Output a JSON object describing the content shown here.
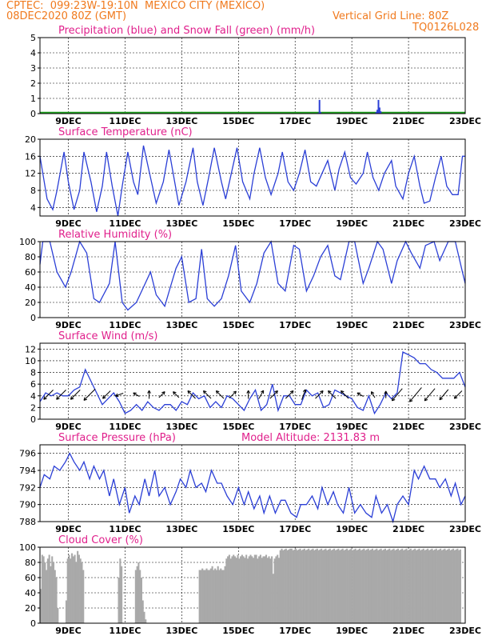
{
  "header": {
    "line1_left": "CPTEC:  099:23W-19:10N  MEXICO CITY (MEXICO)",
    "line2_left": "08DEC2020 80Z (GMT)",
    "line2_right": "Vertical Grid Line: 80Z",
    "line3_right": "TQ0126L028"
  },
  "colors": {
    "header": "#f07a1e",
    "title": "#e0208c",
    "line": "#2b3fd6",
    "snow": "#1fa01f",
    "cloud": "#a9a9a9",
    "wind_arrow": "#000000"
  },
  "date_ticks": [
    "9DEC",
    "11DEC",
    "13DEC",
    "15DEC",
    "17DEC",
    "19DEC",
    "21DEC",
    "23DEC"
  ],
  "chart_data": [
    {
      "id": "precip",
      "type": "bar",
      "title": "Precipitation (blue) and Snow Fall (green) (mm/h)",
      "ylim": [
        0,
        5
      ],
      "yticks": [
        0,
        1,
        2,
        3,
        4,
        5
      ],
      "grid": true,
      "x_range_days": [
        8.0,
        23.0
      ],
      "series": [
        {
          "name": "Precipitation",
          "x": [
            17.82,
            17.86,
            17.9,
            19.86,
            19.9,
            19.94,
            19.98,
            20.02
          ],
          "values": [
            0.05,
            0.9,
            0.1,
            0.1,
            0.25,
            0.9,
            0.4,
            0.15
          ]
        },
        {
          "name": "Snow Fall",
          "values": [
            0
          ]
        }
      ]
    },
    {
      "id": "temp",
      "type": "line",
      "title": "Surface Temperature (nC)",
      "ylim": [
        2,
        20
      ],
      "yticks": [
        4,
        8,
        12,
        16,
        20
      ],
      "grid": true,
      "x_range_days": [
        8.0,
        23.0
      ],
      "x": [
        8.0,
        8.25,
        8.45,
        8.6,
        8.85,
        9.0,
        9.2,
        9.4,
        9.55,
        9.8,
        10.0,
        10.2,
        10.35,
        10.55,
        10.75,
        10.9,
        11.1,
        11.3,
        11.45,
        11.65,
        11.9,
        12.1,
        12.35,
        12.55,
        12.75,
        12.9,
        13.15,
        13.4,
        13.55,
        13.75,
        13.95,
        14.15,
        14.4,
        14.55,
        14.75,
        14.95,
        15.15,
        15.4,
        15.55,
        15.75,
        15.95,
        16.15,
        16.4,
        16.55,
        16.75,
        16.95,
        17.15,
        17.35,
        17.55,
        17.75,
        17.95,
        18.15,
        18.4,
        18.55,
        18.75,
        18.95,
        19.15,
        19.4,
        19.55,
        19.75,
        19.95,
        20.15,
        20.4,
        20.55,
        20.8,
        21.0,
        21.2,
        21.4,
        21.55,
        21.75,
        21.95,
        22.15,
        22.35,
        22.55,
        22.75,
        22.9,
        23.0
      ],
      "values": [
        16,
        6,
        3.5,
        8,
        17,
        10,
        3.5,
        8,
        17,
        10,
        3,
        9,
        17,
        9,
        2,
        9,
        17,
        10,
        7,
        18.5,
        11,
        5,
        10,
        17.5,
        10,
        4.5,
        10,
        18,
        10,
        4.5,
        11,
        18,
        10,
        6,
        12,
        18,
        10,
        6,
        12,
        18,
        11,
        7,
        12,
        17,
        10,
        8,
        12,
        17.5,
        10,
        9,
        12,
        15,
        8,
        13,
        17,
        11,
        9.5,
        12,
        17,
        11,
        8,
        12,
        15,
        9,
        6,
        12,
        16,
        9,
        5,
        5.5,
        11,
        16,
        9,
        7,
        7,
        16,
        16
      ]
    },
    {
      "id": "rh",
      "type": "line",
      "title": "Relative Humidity (%)",
      "ylim": [
        0,
        100
      ],
      "yticks": [
        0,
        20,
        40,
        60,
        80,
        100
      ],
      "grid": true,
      "x_range_days": [
        8.0,
        23.0
      ],
      "x": [
        8.0,
        8.1,
        8.35,
        8.6,
        8.9,
        9.1,
        9.4,
        9.65,
        9.9,
        10.1,
        10.45,
        10.65,
        10.9,
        11.1,
        11.4,
        11.65,
        11.9,
        12.1,
        12.4,
        12.6,
        12.8,
        13.0,
        13.25,
        13.5,
        13.7,
        13.9,
        14.15,
        14.4,
        14.65,
        14.9,
        15.1,
        15.4,
        15.65,
        15.9,
        16.15,
        16.4,
        16.65,
        16.95,
        17.15,
        17.4,
        17.65,
        17.9,
        18.15,
        18.4,
        18.6,
        18.9,
        19.1,
        19.4,
        19.6,
        19.9,
        20.1,
        20.4,
        20.6,
        20.9,
        21.1,
        21.4,
        21.6,
        21.9,
        22.1,
        22.4,
        22.65,
        22.9,
        23.0
      ],
      "values": [
        70,
        100,
        100,
        60,
        40,
        60,
        100,
        85,
        25,
        20,
        45,
        100,
        20,
        10,
        20,
        40,
        60,
        30,
        15,
        40,
        65,
        80,
        20,
        25,
        90,
        25,
        15,
        25,
        55,
        95,
        35,
        20,
        45,
        85,
        100,
        45,
        35,
        95,
        90,
        35,
        55,
        80,
        95,
        55,
        50,
        100,
        100,
        45,
        65,
        100,
        90,
        45,
        75,
        100,
        85,
        65,
        95,
        100,
        75,
        100,
        100,
        60,
        45
      ]
    },
    {
      "id": "wind",
      "type": "line",
      "title": "Surface Wind (m/s)",
      "ylim": [
        0,
        13
      ],
      "yticks": [
        0,
        2,
        4,
        6,
        8,
        10,
        12
      ],
      "grid": true,
      "x_range_days": [
        8.0,
        23.0
      ],
      "x": [
        8.0,
        8.2,
        8.4,
        8.6,
        8.8,
        9.0,
        9.2,
        9.4,
        9.6,
        9.8,
        10.0,
        10.2,
        10.4,
        10.6,
        10.8,
        11.0,
        11.2,
        11.4,
        11.6,
        11.8,
        12.0,
        12.2,
        12.4,
        12.6,
        12.8,
        13.0,
        13.2,
        13.4,
        13.6,
        13.8,
        14.0,
        14.2,
        14.4,
        14.6,
        14.8,
        15.0,
        15.2,
        15.4,
        15.6,
        15.8,
        16.0,
        16.2,
        16.4,
        16.6,
        16.8,
        17.0,
        17.2,
        17.4,
        17.6,
        17.8,
        18.0,
        18.2,
        18.4,
        18.6,
        18.8,
        19.0,
        19.2,
        19.4,
        19.6,
        19.8,
        20.0,
        20.2,
        20.4,
        20.6,
        20.8,
        21.0,
        21.2,
        21.4,
        21.6,
        21.8,
        22.0,
        22.2,
        22.4,
        22.6,
        22.8,
        23.0
      ],
      "values": [
        3,
        4.5,
        4,
        4.5,
        4,
        4,
        5,
        5.5,
        8.5,
        6.5,
        4.5,
        2.5,
        3.5,
        4.5,
        3,
        1,
        1.5,
        2.5,
        1.5,
        3,
        2,
        1.5,
        2.5,
        2.5,
        1.5,
        3,
        2.5,
        4.5,
        3.5,
        4,
        2,
        3,
        2,
        4,
        3.5,
        2.5,
        1.5,
        3.5,
        5,
        1.5,
        2.5,
        6,
        1.5,
        4,
        4,
        2.5,
        2.5,
        5,
        4,
        4.5,
        2,
        2.5,
        5,
        4.5,
        4,
        3.5,
        2,
        1.5,
        4,
        1,
        2.5,
        4.5,
        3.5,
        4.5,
        11.5,
        11,
        10.5,
        9.5,
        9.5,
        8.5,
        8,
        7,
        7,
        7,
        8,
        5.5
      ],
      "arrows": [
        {
          "day": 8.3,
          "speed": 4,
          "dir_deg": 225
        },
        {
          "day": 8.75,
          "speed": 4,
          "dir_deg": 225
        },
        {
          "day": 9.25,
          "speed": 4,
          "dir_deg": 225
        },
        {
          "day": 9.75,
          "speed": 5,
          "dir_deg": 225
        },
        {
          "day": 10.35,
          "speed": 3,
          "dir_deg": 225
        },
        {
          "day": 10.8,
          "speed": 2,
          "dir_deg": 200
        },
        {
          "day": 11.4,
          "speed": 1.5,
          "dir_deg": 150
        },
        {
          "day": 11.85,
          "speed": 2,
          "dir_deg": 90
        },
        {
          "day": 12.3,
          "speed": 2,
          "dir_deg": 45
        },
        {
          "day": 12.8,
          "speed": 2,
          "dir_deg": 135
        },
        {
          "day": 13.35,
          "speed": 3,
          "dir_deg": 135
        },
        {
          "day": 13.9,
          "speed": 3,
          "dir_deg": 135
        },
        {
          "day": 14.35,
          "speed": 3,
          "dir_deg": 135
        },
        {
          "day": 14.8,
          "speed": 2.5,
          "dir_deg": 45
        },
        {
          "day": 15.35,
          "speed": 2,
          "dir_deg": 90
        },
        {
          "day": 15.8,
          "speed": 2.5,
          "dir_deg": 60
        },
        {
          "day": 16.25,
          "speed": 3,
          "dir_deg": 45
        },
        {
          "day": 16.8,
          "speed": 3,
          "dir_deg": 45
        },
        {
          "day": 17.3,
          "speed": 3,
          "dir_deg": 70
        },
        {
          "day": 17.85,
          "speed": 3,
          "dir_deg": 45
        },
        {
          "day": 18.3,
          "speed": 3,
          "dir_deg": 135
        },
        {
          "day": 18.75,
          "speed": 3,
          "dir_deg": 135
        },
        {
          "day": 19.3,
          "speed": 1.5,
          "dir_deg": 150
        },
        {
          "day": 19.75,
          "speed": 1.5,
          "dir_deg": 120
        },
        {
          "day": 20.2,
          "speed": 1.5,
          "dir_deg": 90
        },
        {
          "day": 20.6,
          "speed": 5,
          "dir_deg": 230
        },
        {
          "day": 21.25,
          "speed": 6,
          "dir_deg": 230
        },
        {
          "day": 21.75,
          "speed": 5,
          "dir_deg": 230
        },
        {
          "day": 22.25,
          "speed": 4,
          "dir_deg": 230
        },
        {
          "day": 22.75,
          "speed": 3,
          "dir_deg": 225
        }
      ]
    },
    {
      "id": "pres",
      "type": "line",
      "title": "Surface Pressure (hPa)",
      "subtitle": "Model Altitude: 2131.83 m",
      "ylim": [
        788,
        797
      ],
      "yticks": [
        788,
        790,
        792,
        794,
        796
      ],
      "grid": true,
      "x_range_days": [
        8.0,
        23.0
      ],
      "x": [
        8.0,
        8.15,
        8.35,
        8.5,
        8.7,
        8.9,
        9.05,
        9.2,
        9.4,
        9.55,
        9.75,
        9.9,
        10.1,
        10.25,
        10.45,
        10.6,
        10.8,
        11.0,
        11.15,
        11.35,
        11.5,
        11.7,
        11.85,
        12.05,
        12.2,
        12.4,
        12.6,
        12.8,
        12.95,
        13.15,
        13.3,
        13.5,
        13.7,
        13.85,
        14.05,
        14.25,
        14.4,
        14.6,
        14.8,
        15.0,
        15.2,
        15.35,
        15.55,
        15.75,
        15.9,
        16.1,
        16.3,
        16.5,
        16.65,
        16.85,
        17.05,
        17.2,
        17.4,
        17.6,
        17.8,
        17.95,
        18.15,
        18.35,
        18.5,
        18.7,
        18.9,
        19.1,
        19.3,
        19.5,
        19.7,
        19.85,
        20.05,
        20.25,
        20.45,
        20.6,
        20.8,
        21.0,
        21.2,
        21.35,
        21.55,
        21.75,
        21.95,
        22.1,
        22.3,
        22.5,
        22.65,
        22.85,
        23.0
      ],
      "values": [
        792,
        793.5,
        793,
        794.5,
        794,
        795,
        796,
        795,
        794,
        795,
        793,
        794.5,
        793,
        794,
        791,
        793,
        790,
        792,
        789,
        791,
        790,
        793,
        791,
        794,
        791,
        792,
        790,
        791.5,
        793,
        792,
        794,
        792,
        792.5,
        791.5,
        794,
        792.5,
        792.5,
        791,
        790,
        792,
        790,
        791.5,
        789.5,
        791,
        789,
        791,
        789,
        790.5,
        790.5,
        789,
        788.5,
        790,
        790,
        791,
        789.5,
        792,
        790,
        791.5,
        790,
        789,
        792,
        789,
        790,
        789,
        788.5,
        791,
        789,
        790,
        788,
        790,
        791,
        790,
        794,
        793,
        794.5,
        793,
        793,
        792,
        793,
        791,
        792.5,
        790,
        791
      ]
    },
    {
      "id": "cloud",
      "type": "bar",
      "title": "Cloud Cover (%)",
      "ylim": [
        0,
        100
      ],
      "yticks": [
        0,
        20,
        40,
        60,
        80,
        100
      ],
      "grid": true,
      "x_range_days": [
        8.0,
        23.0
      ],
      "x_start": 8.0,
      "x_step": 0.05,
      "values": [
        45,
        90,
        88,
        80,
        70,
        85,
        90,
        75,
        88,
        80,
        70,
        60,
        20,
        0,
        0,
        0,
        0,
        0,
        30,
        85,
        90,
        85,
        92,
        88,
        90,
        80,
        95,
        90,
        85,
        80,
        70,
        0,
        0,
        0,
        0,
        0,
        0,
        0,
        0,
        0,
        0,
        0,
        0,
        0,
        0,
        0,
        0,
        0,
        0,
        0,
        0,
        0,
        0,
        0,
        0,
        60,
        85,
        75,
        0,
        0,
        0,
        0,
        0,
        0,
        0,
        0,
        0,
        70,
        75,
        80,
        70,
        60,
        30,
        15,
        5,
        0,
        0,
        0,
        0,
        0,
        0,
        0,
        0,
        0,
        0,
        0,
        0,
        0,
        0,
        0,
        0,
        0,
        0,
        0,
        0,
        0,
        0,
        0,
        0,
        0,
        0,
        0,
        0,
        0,
        0,
        0,
        0,
        0,
        0,
        0,
        0,
        0,
        70,
        70,
        72,
        70,
        70,
        72,
        70,
        70,
        72,
        75,
        70,
        72,
        70,
        75,
        70,
        72,
        70,
        70,
        75,
        85,
        88,
        90,
        85,
        88,
        90,
        88,
        86,
        90,
        85,
        88,
        90,
        88,
        86,
        90,
        85,
        88,
        90,
        88,
        86,
        90,
        90,
        85,
        88,
        90,
        86,
        88,
        88,
        90,
        86,
        88,
        85,
        88,
        65,
        85,
        88,
        90,
        86,
        96,
        98,
        96,
        97,
        98,
        96,
        97,
        98,
        98,
        96,
        97,
        98,
        96,
        97,
        98,
        96,
        97,
        98,
        96,
        97,
        98,
        96,
        97,
        98,
        96,
        97,
        98,
        96,
        97,
        98,
        96,
        97,
        98,
        96,
        97,
        98,
        96,
        97,
        98,
        96,
        97,
        98,
        96,
        97,
        98,
        96,
        97,
        98,
        96,
        97,
        98,
        96,
        97,
        98,
        96,
        97,
        98,
        96,
        97,
        98,
        96,
        97,
        98,
        96,
        97,
        98,
        96,
        97,
        98,
        96,
        97,
        98,
        96,
        97,
        98,
        96,
        97,
        98,
        96,
        97,
        98,
        96,
        97,
        98,
        96,
        97,
        98,
        96,
        97,
        98,
        96,
        97,
        98,
        96,
        97,
        98,
        96,
        97,
        98,
        96,
        97,
        98,
        96,
        97,
        98,
        96,
        97,
        98,
        96,
        97,
        98,
        96,
        97,
        98,
        96,
        97,
        98,
        96,
        97,
        98,
        96,
        97,
        98,
        96,
        97,
        98,
        96,
        97
      ]
    }
  ]
}
